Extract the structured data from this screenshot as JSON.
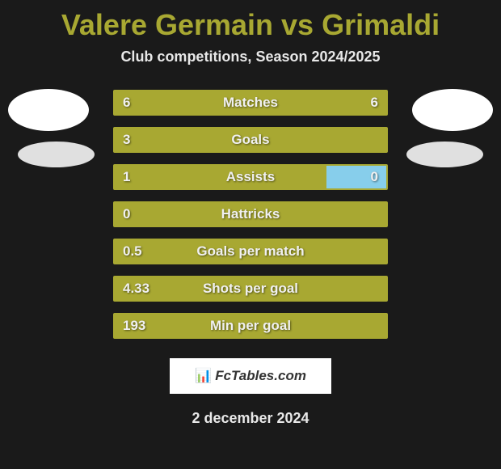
{
  "title": "Valere Germain vs Grimaldi",
  "subtitle": "Club competitions, Season 2024/2025",
  "date": "2 december 2024",
  "logo": "FcTables.com",
  "colors": {
    "background": "#1a1a1a",
    "accent": "#a8a832",
    "bar_bg": "#4a4a1a",
    "right_highlight": "#87ceeb",
    "text_light": "#f0f0f0",
    "subtitle_text": "#e8e8e8",
    "avatar": "#ffffff"
  },
  "typography": {
    "title_fontsize": 36,
    "subtitle_fontsize": 18,
    "stat_fontsize": 17,
    "date_fontsize": 18
  },
  "stats": [
    {
      "label": "Matches",
      "left_value": "6",
      "right_value": "6",
      "left_pct": 100,
      "right_pct": 0
    },
    {
      "label": "Goals",
      "left_value": "3",
      "right_value": "",
      "left_pct": 100,
      "right_pct": 0
    },
    {
      "label": "Assists",
      "left_value": "1",
      "right_value": "0",
      "left_pct": 78,
      "right_pct": 22
    },
    {
      "label": "Hattricks",
      "left_value": "0",
      "right_value": "",
      "left_pct": 100,
      "right_pct": 0
    },
    {
      "label": "Goals per match",
      "left_value": "0.5",
      "right_value": "",
      "left_pct": 100,
      "right_pct": 0
    },
    {
      "label": "Shots per goal",
      "left_value": "4.33",
      "right_value": "",
      "left_pct": 100,
      "right_pct": 0
    },
    {
      "label": "Min per goal",
      "left_value": "193",
      "right_value": "",
      "left_pct": 100,
      "right_pct": 0
    }
  ]
}
